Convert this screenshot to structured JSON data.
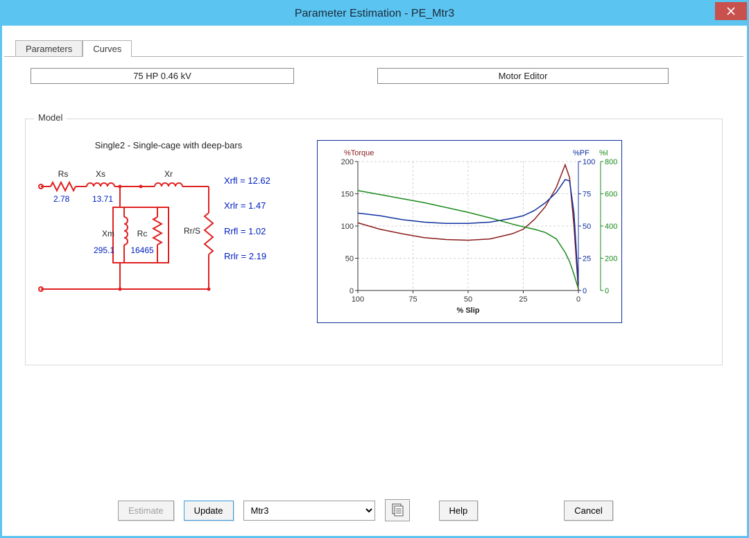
{
  "window": {
    "title": "Parameter Estimation - PE_Mtr3"
  },
  "tabs": {
    "parameters": "Parameters",
    "curves": "Curves",
    "active": "curves"
  },
  "info": {
    "rating": "75 HP   0.46 kV",
    "motor_editor": "Motor Editor"
  },
  "group": {
    "legend": "Model"
  },
  "circuit": {
    "title": "Single2 - Single-cage with deep-bars",
    "color": "#e02020",
    "value_color": "#0020c0",
    "labels": {
      "Rs": "Rs",
      "Xs": "Xs",
      "Xr": "Xr",
      "Xm": "Xm",
      "Rc": "Rc",
      "RrS": "Rr/S"
    },
    "values": {
      "Rs": "2.78",
      "Xs": "13.71",
      "Xm": "295.1",
      "Rc": "16465"
    },
    "side_params": {
      "Xrfl": "Xrfl = 12.62",
      "Xrlr": "Xrlr = 1.47",
      "Rrfl": "Rrfl = 1.02",
      "Rrlr": "Rrlr = 2.19"
    }
  },
  "chart": {
    "border_color": "#1030a0",
    "bg": "#ffffff",
    "grid_color": "#d0d0d0",
    "axis_color": "#333333",
    "x": {
      "label": "% Slip",
      "min": 0,
      "max": 100,
      "ticks": [
        100,
        75,
        50,
        25,
        0
      ],
      "reversed": true
    },
    "y_left": {
      "label": "%Torque",
      "color": "#8a1a1a",
      "min": 0,
      "max": 200,
      "ticks": [
        0,
        50,
        100,
        150,
        200
      ]
    },
    "y_right1": {
      "label": "%PF",
      "color": "#1030a0",
      "min": 0,
      "max": 100,
      "ticks": [
        0,
        25,
        50,
        75,
        100
      ]
    },
    "y_right2": {
      "label": "%I",
      "color": "#1a8a1a",
      "min": 0,
      "max": 800,
      "ticks": [
        0,
        200,
        400,
        600,
        800
      ]
    },
    "series": {
      "torque": {
        "color": "#8a1a1a",
        "width": 1.5,
        "points": [
          [
            100,
            105
          ],
          [
            90,
            95
          ],
          [
            80,
            88
          ],
          [
            70,
            82
          ],
          [
            60,
            79
          ],
          [
            50,
            78
          ],
          [
            40,
            80
          ],
          [
            30,
            88
          ],
          [
            25,
            95
          ],
          [
            20,
            110
          ],
          [
            15,
            130
          ],
          [
            10,
            160
          ],
          [
            6,
            195
          ],
          [
            4,
            175
          ],
          [
            2,
            100
          ],
          [
            0,
            0
          ]
        ]
      },
      "pf": {
        "color": "#1030a0",
        "width": 1.5,
        "points": [
          [
            100,
            60
          ],
          [
            90,
            58
          ],
          [
            80,
            55
          ],
          [
            70,
            53
          ],
          [
            60,
            52
          ],
          [
            50,
            52
          ],
          [
            40,
            53
          ],
          [
            30,
            56
          ],
          [
            25,
            58
          ],
          [
            20,
            62
          ],
          [
            15,
            68
          ],
          [
            10,
            76
          ],
          [
            6,
            86
          ],
          [
            4,
            85
          ],
          [
            2,
            60
          ],
          [
            0,
            5
          ]
        ]
      },
      "current": {
        "color": "#1a8a1a",
        "width": 1.5,
        "points": [
          [
            100,
            620
          ],
          [
            90,
            595
          ],
          [
            80,
            570
          ],
          [
            70,
            545
          ],
          [
            60,
            515
          ],
          [
            50,
            485
          ],
          [
            40,
            450
          ],
          [
            30,
            412
          ],
          [
            25,
            395
          ],
          [
            20,
            380
          ],
          [
            15,
            360
          ],
          [
            10,
            320
          ],
          [
            6,
            236
          ],
          [
            4,
            180
          ],
          [
            2,
            100
          ],
          [
            0,
            10
          ]
        ]
      }
    }
  },
  "buttons": {
    "estimate": "Estimate",
    "update": "Update",
    "help": "Help",
    "cancel": "Cancel",
    "select_value": "Mtr3"
  }
}
